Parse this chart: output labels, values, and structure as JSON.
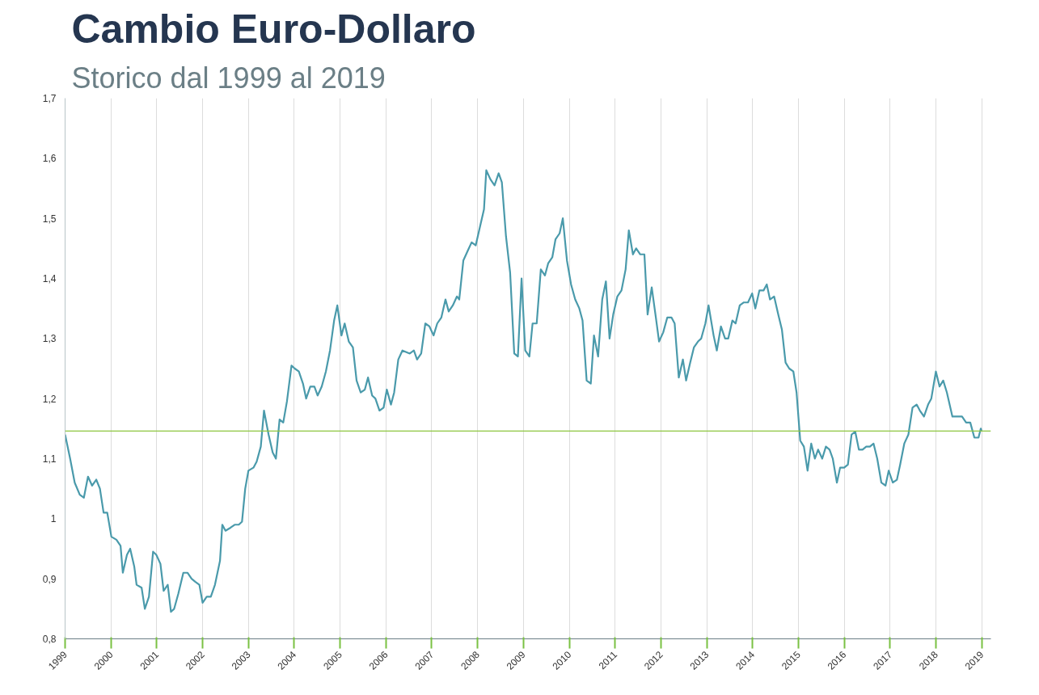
{
  "chart_data": {
    "type": "line",
    "title": "Cambio Euro-Dollaro",
    "subtitle": "Storico dal 1999 al 2019",
    "x": [
      1999,
      1999.11,
      1999.21,
      1999.32,
      1999.41,
      1999.5,
      1999.59,
      1999.68,
      1999.76,
      1999.84,
      1999.92,
      2000.01,
      2000.12,
      2000.21,
      2000.26,
      2000.35,
      2000.42,
      2000.51,
      2000.56,
      2000.67,
      2000.74,
      2000.83,
      2000.92,
      2000.99,
      2001.08,
      2001.15,
      2001.24,
      2001.31,
      2001.38,
      2001.47,
      2001.58,
      2001.67,
      2001.76,
      2001.84,
      2001.93,
      2002,
      2002.09,
      2002.18,
      2002.27,
      2002.38,
      2002.43,
      2002.5,
      2002.61,
      2002.7,
      2002.79,
      2002.86,
      2002.93,
      2003,
      2003.11,
      2003.18,
      2003.27,
      2003.34,
      2003.44,
      2003.53,
      2003.6,
      2003.68,
      2003.76,
      2003.84,
      2003.94,
      2004.01,
      2004.1,
      2004.19,
      2004.26,
      2004.35,
      2004.44,
      2004.51,
      2004.6,
      2004.69,
      2004.78,
      2004.87,
      2004.94,
      2005.03,
      2005.1,
      2005.19,
      2005.28,
      2005.36,
      2005.45,
      2005.54,
      2005.61,
      2005.7,
      2005.77,
      2005.86,
      2005.95,
      2006.02,
      2006.11,
      2006.18,
      2006.27,
      2006.36,
      2006.52,
      2006.61,
      2006.68,
      2006.77,
      2006.86,
      2006.95,
      2007.04,
      2007.12,
      2007.21,
      2007.3,
      2007.37,
      2007.46,
      2007.55,
      2007.6,
      2007.69,
      2007.78,
      2007.87,
      2007.96,
      2008.05,
      2008.14,
      2008.19,
      2008.28,
      2008.37,
      2008.46,
      2008.53,
      2008.62,
      2008.71,
      2008.8,
      2008.88,
      2008.96,
      2009.04,
      2009.13,
      2009.2,
      2009.29,
      2009.38,
      2009.47,
      2009.54,
      2009.63,
      2009.7,
      2009.79,
      2009.86,
      2009.95,
      2010.04,
      2010.13,
      2010.22,
      2010.29,
      2010.38,
      2010.47,
      2010.54,
      2010.63,
      2010.72,
      2010.8,
      2010.88,
      2010.96,
      2011.05,
      2011.14,
      2011.23,
      2011.3,
      2011.39,
      2011.46,
      2011.55,
      2011.64,
      2011.71,
      2011.8,
      2011.89,
      2011.96,
      2012.05,
      2012.14,
      2012.23,
      2012.3,
      2012.39,
      2012.48,
      2012.55,
      2012.64,
      2012.72,
      2012.81,
      2012.88,
      2012.97,
      2013.04,
      2013.15,
      2013.22,
      2013.31,
      2013.4,
      2013.47,
      2013.56,
      2013.63,
      2013.72,
      2013.81,
      2013.9,
      2013.99,
      2014.06,
      2014.15,
      2014.24,
      2014.31,
      2014.38,
      2014.47,
      2014.56,
      2014.64,
      2014.72,
      2014.8,
      2014.89,
      2014.96,
      2015.04,
      2015.12,
      2015.2,
      2015.28,
      2015.36,
      2015.43,
      2015.52,
      2015.6,
      2015.68,
      2015.75,
      2015.84,
      2015.91,
      2016,
      2016.08,
      2016.16,
      2016.24,
      2016.32,
      2016.4,
      2016.48,
      2016.56,
      2016.64,
      2016.72,
      2016.81,
      2016.9,
      2016.97,
      2017.06,
      2017.15,
      2017.22,
      2017.31,
      2017.4,
      2017.49,
      2017.58,
      2017.65,
      2017.74,
      2017.83,
      2017.9,
      2018,
      2018.08,
      2018.16,
      2018.24,
      2018.36,
      2018.48,
      2018.57,
      2018.66,
      2018.75,
      2018.84,
      2018.93,
      2018.98,
      2019
    ],
    "series": [
      {
        "color": "#4a9aab",
        "values": [
          1.14,
          1.1,
          1.06,
          1.04,
          1.035,
          1.07,
          1.055,
          1.065,
          1.05,
          1.01,
          1.01,
          0.97,
          0.965,
          0.955,
          0.91,
          0.94,
          0.95,
          0.92,
          0.89,
          0.885,
          0.85,
          0.87,
          0.945,
          0.94,
          0.925,
          0.88,
          0.89,
          0.845,
          0.85,
          0.875,
          0.91,
          0.91,
          0.9,
          0.895,
          0.89,
          0.86,
          0.87,
          0.87,
          0.89,
          0.93,
          0.99,
          0.98,
          0.985,
          0.99,
          0.99,
          0.995,
          1.05,
          1.08,
          1.085,
          1.095,
          1.12,
          1.18,
          1.14,
          1.11,
          1.1,
          1.165,
          1.16,
          1.195,
          1.255,
          1.25,
          1.245,
          1.225,
          1.2,
          1.22,
          1.22,
          1.205,
          1.22,
          1.245,
          1.28,
          1.33,
          1.355,
          1.305,
          1.325,
          1.295,
          1.285,
          1.23,
          1.21,
          1.215,
          1.235,
          1.205,
          1.2,
          1.18,
          1.185,
          1.215,
          1.19,
          1.21,
          1.265,
          1.28,
          1.275,
          1.28,
          1.265,
          1.275,
          1.325,
          1.32,
          1.305,
          1.325,
          1.335,
          1.365,
          1.345,
          1.355,
          1.37,
          1.365,
          1.43,
          1.445,
          1.46,
          1.455,
          1.485,
          1.515,
          1.58,
          1.565,
          1.555,
          1.575,
          1.56,
          1.47,
          1.41,
          1.275,
          1.27,
          1.4,
          1.28,
          1.27,
          1.325,
          1.325,
          1.415,
          1.405,
          1.425,
          1.435,
          1.465,
          1.475,
          1.5,
          1.43,
          1.39,
          1.365,
          1.35,
          1.33,
          1.23,
          1.225,
          1.305,
          1.27,
          1.365,
          1.395,
          1.3,
          1.34,
          1.37,
          1.38,
          1.415,
          1.48,
          1.44,
          1.45,
          1.44,
          1.44,
          1.34,
          1.385,
          1.335,
          1.295,
          1.31,
          1.335,
          1.335,
          1.325,
          1.235,
          1.265,
          1.23,
          1.26,
          1.285,
          1.295,
          1.3,
          1.325,
          1.355,
          1.305,
          1.28,
          1.32,
          1.3,
          1.3,
          1.33,
          1.325,
          1.355,
          1.36,
          1.36,
          1.375,
          1.35,
          1.38,
          1.38,
          1.39,
          1.365,
          1.37,
          1.34,
          1.315,
          1.26,
          1.25,
          1.245,
          1.21,
          1.13,
          1.12,
          1.08,
          1.125,
          1.1,
          1.115,
          1.1,
          1.12,
          1.115,
          1.1,
          1.06,
          1.085,
          1.085,
          1.09,
          1.14,
          1.145,
          1.115,
          1.115,
          1.12,
          1.12,
          1.125,
          1.1,
          1.06,
          1.055,
          1.08,
          1.06,
          1.065,
          1.09,
          1.125,
          1.14,
          1.185,
          1.19,
          1.18,
          1.17,
          1.19,
          1.2,
          1.245,
          1.22,
          1.23,
          1.21,
          1.17,
          1.17,
          1.17,
          1.16,
          1.16,
          1.135,
          1.135,
          1.15,
          1.145
        ]
      }
    ],
    "xlim": [
      1999,
      2019.2
    ],
    "ylim": [
      0.8,
      1.7
    ],
    "xticks": [
      1999,
      2000,
      2001,
      2002,
      2003,
      2004,
      2005,
      2006,
      2007,
      2008,
      2009,
      2010,
      2011,
      2012,
      2013,
      2014,
      2015,
      2016,
      2017,
      2018,
      2019
    ],
    "yticks": [
      {
        "value": 0.8,
        "label": "0,8"
      },
      {
        "value": 0.9,
        "label": "0,9"
      },
      1,
      {
        "value": 1.1,
        "label": "1,1"
      },
      {
        "value": 1.2,
        "label": "1,2"
      },
      {
        "value": 1.3,
        "label": "1,3"
      },
      {
        "value": 1.4,
        "label": "1,4"
      },
      {
        "value": 1.5,
        "label": "1,5"
      },
      {
        "value": 1.6,
        "label": "1,6"
      },
      {
        "value": 1.7,
        "label": "1,7"
      }
    ],
    "ref_lines": [
      {
        "axis": "y",
        "value": 1.146,
        "color": "#8dc63f"
      }
    ],
    "grid": "x",
    "marker": "none",
    "line_style": "solid"
  }
}
